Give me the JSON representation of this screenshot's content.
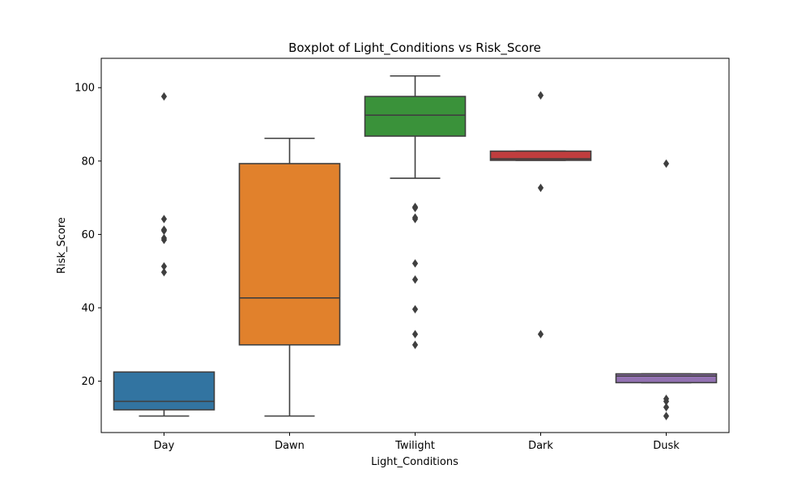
{
  "chart_data": {
    "type": "box",
    "title": "Boxplot of Light_Conditions vs Risk_Score",
    "xlabel": "Light_Conditions",
    "ylabel": "Risk_Score",
    "ylim": [
      6,
      108
    ],
    "yticks": [
      20,
      40,
      60,
      80,
      100
    ],
    "grid": false,
    "categories": [
      "Day",
      "Dawn",
      "Twilight",
      "Dark",
      "Dusk"
    ],
    "boxes": [
      {
        "category": "Day",
        "color": "#3274a1",
        "whisker_low": 10.5,
        "q1": 12.2,
        "median": 14.5,
        "q3": 22.5,
        "whisker_high": 22.5,
        "outliers": [
          49.7,
          51.3,
          58.5,
          59.0,
          61.0,
          61.3,
          64.2,
          97.6
        ]
      },
      {
        "category": "Dawn",
        "color": "#e1812c",
        "whisker_low": 10.5,
        "q1": 29.9,
        "median": 42.7,
        "q3": 79.3,
        "whisker_high": 86.2,
        "outliers": []
      },
      {
        "category": "Twilight",
        "color": "#3a923a",
        "whisker_low": 75.3,
        "q1": 86.8,
        "median": 92.5,
        "q3": 97.6,
        "whisker_high": 103.2,
        "outliers": [
          29.9,
          32.8,
          39.6,
          47.7,
          52.1,
          64.2,
          64.6,
          67.2,
          67.5
        ]
      },
      {
        "category": "Dark",
        "color": "#c03d3e",
        "whisker_low": 80.2,
        "q1": 80.2,
        "median": 80.6,
        "q3": 82.7,
        "whisker_high": 82.7,
        "outliers": [
          32.8,
          72.7,
          97.9
        ]
      },
      {
        "category": "Dusk",
        "color": "#9372b2",
        "whisker_low": 19.6,
        "q1": 19.6,
        "median": 21.4,
        "q3": 22.0,
        "whisker_high": 22.0,
        "outliers": [
          10.5,
          12.9,
          14.5,
          15.2,
          79.3
        ]
      }
    ]
  }
}
